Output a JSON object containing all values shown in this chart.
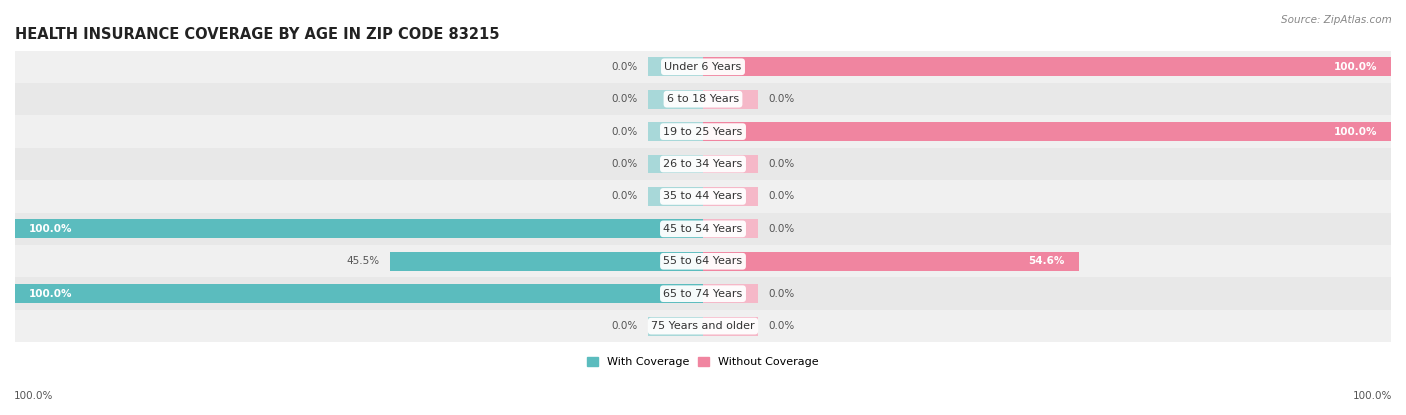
{
  "title": "HEALTH INSURANCE COVERAGE BY AGE IN ZIP CODE 83215",
  "source": "Source: ZipAtlas.com",
  "categories": [
    "Under 6 Years",
    "6 to 18 Years",
    "19 to 25 Years",
    "26 to 34 Years",
    "35 to 44 Years",
    "45 to 54 Years",
    "55 to 64 Years",
    "65 to 74 Years",
    "75 Years and older"
  ],
  "with_coverage": [
    0.0,
    0.0,
    0.0,
    0.0,
    0.0,
    100.0,
    45.5,
    100.0,
    0.0
  ],
  "without_coverage": [
    100.0,
    0.0,
    100.0,
    0.0,
    0.0,
    0.0,
    54.6,
    0.0,
    0.0
  ],
  "color_with": "#5bbcbe",
  "color_without": "#f085a0",
  "color_with_light": "#a8d8d9",
  "color_without_light": "#f5b8c8",
  "bg_row_odd": "#f0f0f0",
  "bg_row_even": "#e8e8e8",
  "title_fontsize": 10.5,
  "source_fontsize": 7.5,
  "label_fontsize": 8,
  "bar_label_fontsize": 7.5,
  "stub_size": 8.0,
  "xlim_left": -100,
  "xlim_right": 100,
  "legend_labels": [
    "With Coverage",
    "Without Coverage"
  ],
  "axis_label_left": "100.0%",
  "axis_label_right": "100.0%"
}
